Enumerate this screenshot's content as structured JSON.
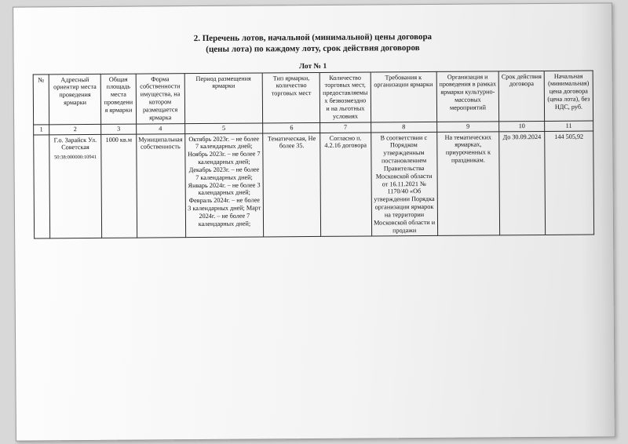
{
  "title": {
    "line1": "2. Перечень лотов, начальной (минимальной) цены договора",
    "line2": "(цены лота) по каждому лоту, срок действия договоров"
  },
  "lot_caption": "Лот № 1",
  "columns": {
    "c1": "№",
    "c2": "Адресный ориентир места проведения ярмарки",
    "c3": "Общая площадь места проведения ярмарки",
    "c4": "Форма собственности имущества, на котором размещается ярмарка",
    "c5": "Период размещения ярмарки",
    "c6": "Тип ярмарки, количество торговых мест",
    "c7": "Количество торговых мест, предоставляемых безвозмездно и на льготных условиях",
    "c8": "Требования к организации ярмарки",
    "c9": "Организация и проведения в рамках ярмарки культурно-массовых мероприятий",
    "c10": "Срок действия договора",
    "c11": "Начальная (минимальная) цена договора (цена лота), без НДС, руб."
  },
  "numrow": {
    "n1": "1",
    "n2": "2",
    "n3": "3",
    "n4": "4",
    "n5": "5",
    "n6": "6",
    "n7": "7",
    "n8": "8",
    "n9": "9",
    "n10": "10",
    "n11": "11"
  },
  "row": {
    "c1": "",
    "c2_main": "Г.о. Зарайск Ул. Советская",
    "c2_sub": "50:38:000000:10941",
    "c3": "1000 кв.м",
    "c4": "Муниципальная собственность",
    "c5": "Октябрь 2023г. – не более 7 календарных дней; Ноябрь 2023г. – не более 7 календарных дней; Декабрь 2023г. – не более 7 календарных дней; Январь 2024г. – не более 3 календарных дней; Февраль 2024г. – не более 3 календарных дней; Март 2024г. – не более 7 календарных дней;",
    "c6": "Тематическая, Не более 35.",
    "c7": "Согласно п. 4.2.16 договора",
    "c8": "В соответствии с Порядком утвержденным постановлением Правительства Московской области от 16.11.2021 № 1170/40 «Об утверждении Порядка организации ярмарок на территории Московской области и продажи",
    "c9": "На тематических ярмарках, приуроченных к праздникам.",
    "c10": "До 30.09.2024",
    "c11": "144 505,92"
  }
}
